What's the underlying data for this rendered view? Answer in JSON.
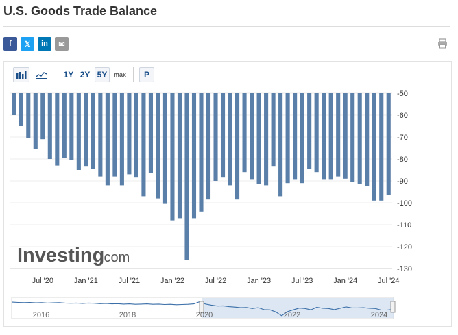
{
  "page": {
    "title": "U.S. Goods Trade Balance"
  },
  "share": {
    "facebook": "f",
    "twitter": "𝕏",
    "linkedin": "in",
    "email": "✉",
    "colors": {
      "facebook": "#3b5998",
      "twitter": "#1da1f2",
      "linkedin": "#0077b5",
      "email": "#999999"
    }
  },
  "toolbar": {
    "icons": [
      "bar-chart-icon",
      "line-chart-icon"
    ],
    "ranges": [
      "1Y",
      "2Y",
      "5Y",
      "max"
    ],
    "selected_range": "5Y",
    "p_label": "P"
  },
  "watermark": {
    "brand": "Investing",
    "suffix": ".com"
  },
  "chart_data": {
    "type": "bar",
    "bar_color": "#5a7fa8",
    "values": [
      -60,
      -65,
      -70.5,
      -75.5,
      -71,
      -80,
      -83,
      -79.5,
      -80.5,
      -85,
      -83.5,
      -84.5,
      -88,
      -92,
      -88,
      -92,
      -87,
      -88.5,
      -97,
      -86.5,
      -98,
      -100.5,
      -108,
      -107,
      -126,
      -107,
      -104,
      -98.5,
      -90,
      -88.5,
      -92,
      -98.5,
      -86,
      -89.5,
      -91.5,
      -92,
      -83.5,
      -97,
      -91,
      -89.5,
      -91,
      -84.5,
      -86,
      -89.5,
      -89.5,
      -88,
      -89,
      -90.5,
      -91.5,
      -92.5,
      -99,
      -99,
      -96.5
    ],
    "ylim": [
      -130,
      -50
    ],
    "yticks": [
      -50,
      -60,
      -70,
      -80,
      -90,
      -100,
      -110,
      -120,
      -130
    ],
    "xtick_labels": [
      "Jul '20",
      "Jan '21",
      "Jul '21",
      "Jan '22",
      "Jul '22",
      "Jan '23",
      "Jul '23",
      "Jan '24",
      "Jul '24"
    ],
    "xtick_index": [
      4,
      10,
      16,
      22,
      28,
      34,
      40,
      46,
      52
    ],
    "grid": true
  },
  "navigator": {
    "year_labels": [
      "2016",
      "2018",
      "2020",
      "2022",
      "2024"
    ],
    "series": [
      -62,
      -63,
      -64,
      -63,
      -65,
      -64,
      -66,
      -65,
      -64,
      -66,
      -67,
      -66,
      -68,
      -66,
      -67,
      -69,
      -68,
      -70,
      -69,
      -71,
      -70,
      -72,
      -71,
      -70,
      -72,
      -71,
      -73,
      -72,
      -74,
      -73,
      -72,
      -70,
      -60,
      -71,
      -76,
      -80,
      -79,
      -83,
      -85,
      -88,
      -87,
      -92,
      -88,
      -97,
      -98,
      -108,
      -126,
      -107,
      -98,
      -90,
      -92,
      -98,
      -86,
      -91,
      -92,
      -97,
      -91,
      -84,
      -89,
      -89,
      -88,
      -91,
      -92,
      -99,
      -99,
      -96
    ]
  }
}
